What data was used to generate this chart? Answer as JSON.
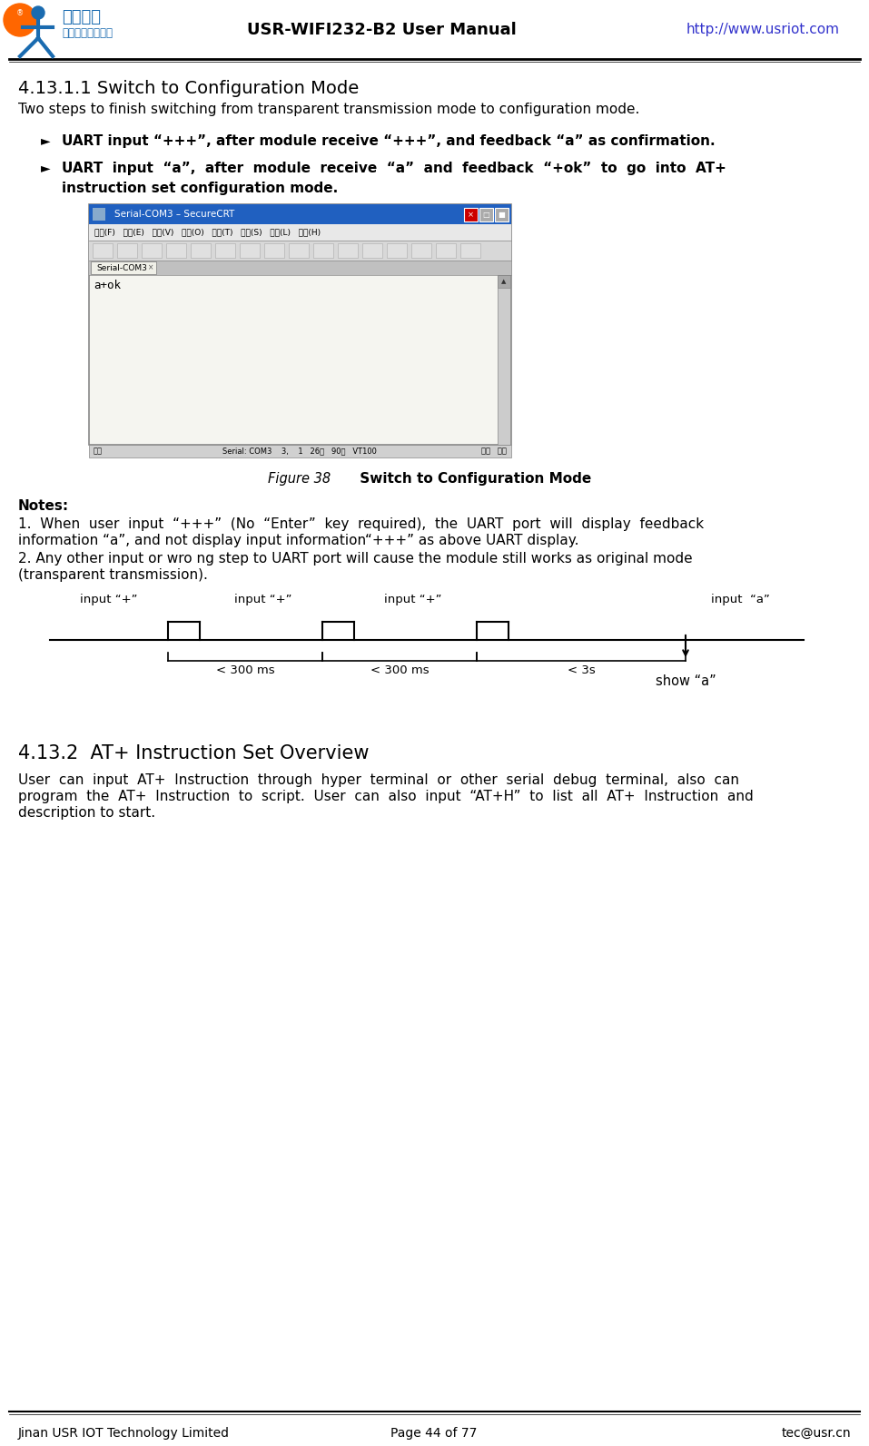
{
  "page_bg": "#ffffff",
  "header_title": "USR-WIFI232-B2 User Manual",
  "header_url": "http://www.usriot.com",
  "footer_left": "Jinan USR IOT Technology Limited",
  "footer_center": "Page 44 of 77",
  "footer_right": "tec@usr.cn",
  "section_title": "4.13.1.1 Switch to Configuration Mode",
  "section_intro": "Two steps to finish switching from transparent transmission mode to configuration mode.",
  "bullet1": "UART input “+++”, after module receive “+++”, and feedback “a” as confirmation.",
  "bullet2_line1": "UART  input  “a”,  after  module  receive  “a”  and  feedback  “+ok”  to  go  into  AT+",
  "bullet2_line2": "instruction set configuration mode.",
  "figure_caption_mono": "Figure 38",
  "figure_caption_bold": "     Switch to Configuration Mode",
  "notes_title": "Notes:",
  "note1a": "1.  When  user  input  “+++”  (No  “Enter”  key  required),  the  UART  port  will  display  feedback",
  "note1b": "information “a”, and not display input information“+++” as above UART display.",
  "note2a": "2. Any other input or wro ng step to UART port will cause the module still works as original mode",
  "note2b": "(transparent transmission).",
  "section2_title": "4.13.2  AT+ Instruction Set Overview",
  "section2_body1": "User  can  input  AT+  Instruction  through  hyper  terminal  or  other  serial  debug  terminal,  also  can",
  "section2_body2": "program  the  AT+  Instruction  to  script.  User  can  also  input  “AT+H”  to  list  all  AT+  Instruction  and",
  "section2_body3": "description to start.",
  "timing_label1": "input “+”",
  "timing_label2": "input “+”",
  "timing_label3": "input “+”",
  "timing_label4": "input  “a”",
  "timing_time1": "< 300 ms",
  "timing_time2": "< 300 ms",
  "timing_time3": "< 3s",
  "timing_show": "show “a”",
  "url_color": "#3333cc",
  "logo_orange": "#FF6600",
  "logo_blue": "#1a6bb0",
  "black": "#000000",
  "white": "#ffffff",
  "win_title_bg": "#2060c0",
  "win_menu_bg": "#e8e8e8",
  "win_toolbar_bg": "#d8d8d8",
  "win_tab_bg": "#c0c0c0",
  "win_term_bg": "#f5f5f0",
  "win_status_bg": "#d0d0d0",
  "win_border": "#888888",
  "win_close_btn": "#cc0000",
  "scroll_bg": "#cccccc"
}
